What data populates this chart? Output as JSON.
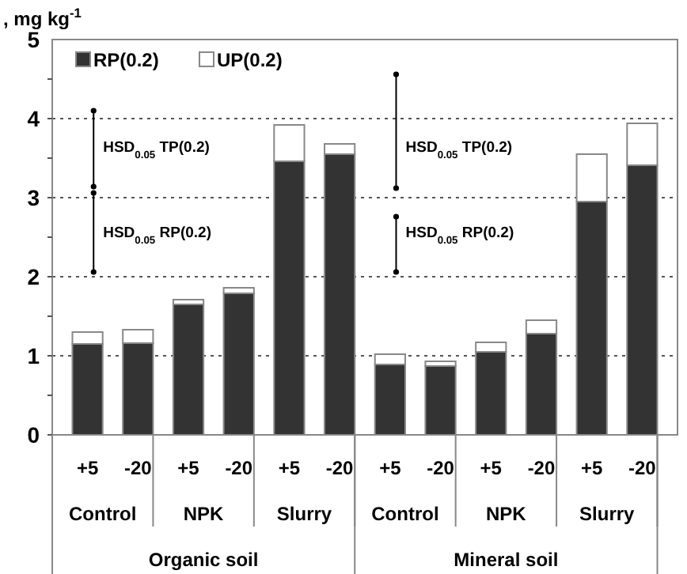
{
  "chart_data": {
    "type": "bar",
    "stacked": true,
    "ylabel": ", mg kg$^{-1}$",
    "categories": [
      "+5",
      "-20",
      "+5",
      "-20",
      "+5",
      "-20",
      "+5",
      "-20",
      "+5",
      "-20",
      "+5",
      "-20"
    ],
    "series": [
      {
        "name": "RP(0.2)",
        "color": "#333333",
        "values": [
          1.15,
          1.16,
          1.65,
          1.79,
          3.46,
          3.55,
          0.89,
          0.87,
          1.05,
          1.28,
          2.95,
          3.41
        ]
      },
      {
        "name": "UP(0.2)",
        "color": "#ffffff",
        "values": [
          0.15,
          0.17,
          0.06,
          0.07,
          0.46,
          0.13,
          0.13,
          0.06,
          0.12,
          0.17,
          0.6,
          0.53
        ]
      }
    ],
    "ylim": [
      0,
      5
    ],
    "yticks": [
      0,
      1,
      2,
      3,
      4,
      5
    ],
    "grid": "y",
    "legend": "top left",
    "annotations": [
      "HSD$_{0.05}$ TP(0.2)",
      "HSD$_{0.05}$ RP(0.2)",
      "HSD$_{0.05}$ TP(0.2)",
      "HSD$_{0.05}$ RP(0.2)",
      "Control",
      "NPK",
      "Slurry",
      "Control",
      "NPK",
      "Slurry",
      "Organic soil",
      "Mineral soil"
    ]
  }
}
